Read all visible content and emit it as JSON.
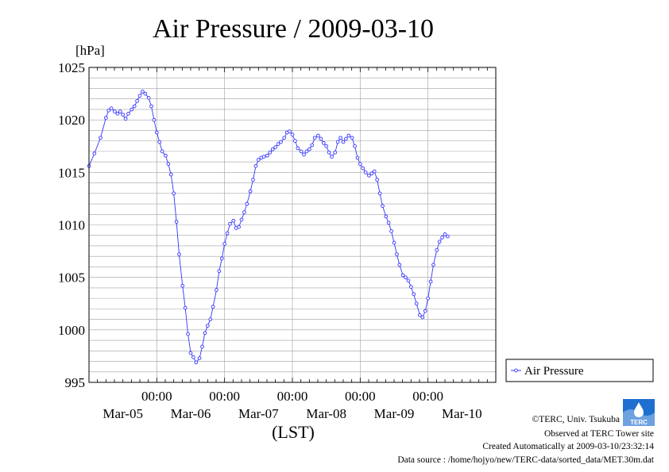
{
  "colors": {
    "series": "#3434ff",
    "grid": "#a0a0a0",
    "frame": "#000000",
    "logo": "#1f6fd0"
  },
  "chart_data": {
    "type": "line",
    "title": "Air Pressure / 2009-03-10",
    "ylabel": "[hPa]",
    "xlabel": "(LST)",
    "ylim": [
      995,
      1025
    ],
    "yticks": [
      "995",
      "1000",
      "1005",
      "1010",
      "1015",
      "1020",
      "1025"
    ],
    "xlim_days": [
      0,
      6
    ],
    "xtick_time_labels": [
      "00:00",
      "00:00",
      "00:00",
      "00:00",
      "00:00"
    ],
    "xtick_date_labels": [
      "Mar-05",
      "Mar-06",
      "Mar-07",
      "Mar-08",
      "Mar-09",
      "Mar-10"
    ],
    "grid": true,
    "legend_position": "right",
    "series": [
      {
        "name": "Air Pressure",
        "marker": "circle",
        "points": [
          [
            0.0,
            1015.6
          ],
          [
            0.08,
            1016.8
          ],
          [
            0.17,
            1018.3
          ],
          [
            0.25,
            1020.2
          ],
          [
            0.29,
            1020.9
          ],
          [
            0.33,
            1021.1
          ],
          [
            0.38,
            1020.8
          ],
          [
            0.42,
            1020.6
          ],
          [
            0.46,
            1020.8
          ],
          [
            0.5,
            1020.5
          ],
          [
            0.54,
            1020.1
          ],
          [
            0.58,
            1020.6
          ],
          [
            0.63,
            1021.0
          ],
          [
            0.67,
            1021.3
          ],
          [
            0.71,
            1021.8
          ],
          [
            0.75,
            1022.3
          ],
          [
            0.79,
            1022.7
          ],
          [
            0.83,
            1022.5
          ],
          [
            0.88,
            1022.1
          ],
          [
            0.92,
            1021.3
          ],
          [
            0.96,
            1020.0
          ],
          [
            1.0,
            1018.8
          ],
          [
            1.04,
            1017.9
          ],
          [
            1.08,
            1017.0
          ],
          [
            1.13,
            1016.6
          ],
          [
            1.17,
            1015.8
          ],
          [
            1.21,
            1014.8
          ],
          [
            1.25,
            1013.0
          ],
          [
            1.29,
            1010.3
          ],
          [
            1.33,
            1007.2
          ],
          [
            1.38,
            1004.2
          ],
          [
            1.42,
            1002.1
          ],
          [
            1.46,
            999.6
          ],
          [
            1.5,
            997.8
          ],
          [
            1.54,
            997.4
          ],
          [
            1.58,
            996.9
          ],
          [
            1.63,
            997.3
          ],
          [
            1.67,
            998.4
          ],
          [
            1.71,
            999.7
          ],
          [
            1.75,
            1000.4
          ],
          [
            1.79,
            1001.0
          ],
          [
            1.83,
            1002.2
          ],
          [
            1.88,
            1003.8
          ],
          [
            1.92,
            1005.6
          ],
          [
            1.96,
            1006.8
          ],
          [
            2.0,
            1008.2
          ],
          [
            2.04,
            1009.2
          ],
          [
            2.08,
            1010.1
          ],
          [
            2.13,
            1010.4
          ],
          [
            2.17,
            1009.7
          ],
          [
            2.21,
            1009.8
          ],
          [
            2.25,
            1010.5
          ],
          [
            2.29,
            1011.2
          ],
          [
            2.33,
            1012.0
          ],
          [
            2.38,
            1013.2
          ],
          [
            2.42,
            1014.3
          ],
          [
            2.46,
            1015.6
          ],
          [
            2.5,
            1016.2
          ],
          [
            2.54,
            1016.4
          ],
          [
            2.58,
            1016.5
          ],
          [
            2.63,
            1016.6
          ],
          [
            2.67,
            1016.9
          ],
          [
            2.71,
            1017.2
          ],
          [
            2.75,
            1017.4
          ],
          [
            2.79,
            1017.7
          ],
          [
            2.83,
            1017.9
          ],
          [
            2.88,
            1018.3
          ],
          [
            2.92,
            1018.8
          ],
          [
            2.96,
            1018.9
          ],
          [
            3.0,
            1018.6
          ],
          [
            3.04,
            1018.0
          ],
          [
            3.08,
            1017.3
          ],
          [
            3.13,
            1017.0
          ],
          [
            3.17,
            1016.7
          ],
          [
            3.21,
            1017.0
          ],
          [
            3.25,
            1017.2
          ],
          [
            3.29,
            1017.6
          ],
          [
            3.33,
            1018.3
          ],
          [
            3.38,
            1018.5
          ],
          [
            3.42,
            1018.2
          ],
          [
            3.46,
            1017.8
          ],
          [
            3.5,
            1017.5
          ],
          [
            3.54,
            1016.9
          ],
          [
            3.58,
            1016.5
          ],
          [
            3.63,
            1016.9
          ],
          [
            3.67,
            1017.9
          ],
          [
            3.71,
            1018.3
          ],
          [
            3.75,
            1017.9
          ],
          [
            3.79,
            1018.2
          ],
          [
            3.83,
            1018.5
          ],
          [
            3.88,
            1018.3
          ],
          [
            3.92,
            1017.5
          ],
          [
            3.96,
            1016.4
          ],
          [
            4.0,
            1015.8
          ],
          [
            4.04,
            1015.4
          ],
          [
            4.08,
            1015.0
          ],
          [
            4.13,
            1014.7
          ],
          [
            4.17,
            1014.9
          ],
          [
            4.21,
            1015.1
          ],
          [
            4.25,
            1014.3
          ],
          [
            4.29,
            1013.0
          ],
          [
            4.33,
            1011.8
          ],
          [
            4.38,
            1010.8
          ],
          [
            4.42,
            1010.2
          ],
          [
            4.46,
            1009.4
          ],
          [
            4.5,
            1008.3
          ],
          [
            4.54,
            1007.2
          ],
          [
            4.58,
            1006.2
          ],
          [
            4.63,
            1005.2
          ],
          [
            4.67,
            1005.0
          ],
          [
            4.71,
            1004.7
          ],
          [
            4.75,
            1004.1
          ],
          [
            4.79,
            1003.4
          ],
          [
            4.83,
            1002.5
          ],
          [
            4.88,
            1001.4
          ],
          [
            4.92,
            1001.2
          ],
          [
            4.96,
            1001.8
          ],
          [
            5.0,
            1003.0
          ],
          [
            5.04,
            1004.6
          ],
          [
            5.08,
            1006.2
          ],
          [
            5.13,
            1007.6
          ],
          [
            5.17,
            1008.4
          ],
          [
            5.21,
            1008.8
          ],
          [
            5.25,
            1009.1
          ],
          [
            5.29,
            1008.9
          ]
        ]
      }
    ]
  },
  "footer": {
    "copyright": "©TERC, Univ. Tsukuba",
    "observed": "Observed at TERC Tower site",
    "created": "Created Automatically at 2009-03-10/23:32:14",
    "source": "Data source : /home/hojyo/new/TERC-data/sorted_data/MET.30m.dat",
    "logo_text": "TERC"
  }
}
